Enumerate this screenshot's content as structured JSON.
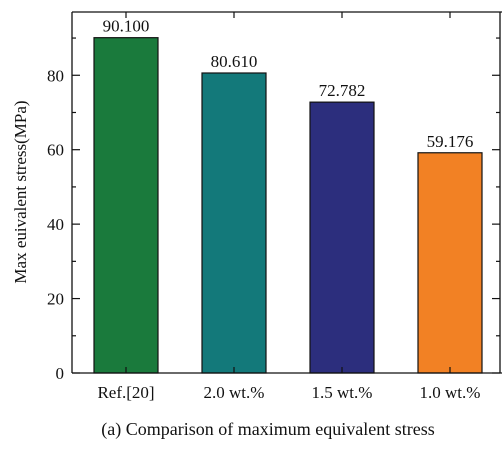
{
  "chart_data": {
    "type": "bar",
    "categories": [
      "Ref.[20]",
      "2.0 wt.%",
      "1.5 wt.%",
      "1.0 wt.%"
    ],
    "values": [
      90.1,
      80.61,
      72.782,
      59.176
    ],
    "value_labels": [
      "90.100",
      "80.610",
      "72.782",
      "59.176"
    ],
    "colors": [
      "#1a7a3c",
      "#13797a",
      "#2c2e7d",
      "#f28124"
    ],
    "xlabel": "",
    "ylabel": "Max euivalent stress(MPa)",
    "ylim": [
      0,
      97
    ],
    "yticks": [
      0,
      20,
      40,
      60,
      80
    ],
    "caption": "(a) Comparison of maximum equivalent stress",
    "grid": false
  }
}
